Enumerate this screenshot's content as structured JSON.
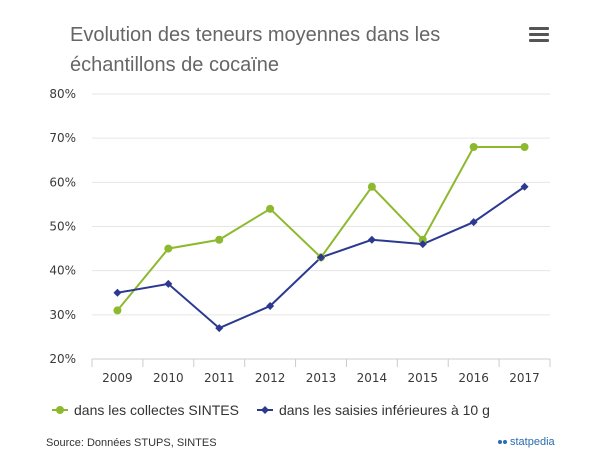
{
  "title": "Evolution des teneurs moyennes dans les échantillons de cocaïne",
  "menu_icon": "hamburger-menu-icon",
  "source": "Source: Données STUPS, SINTES",
  "brand": "statpedia",
  "colors": {
    "series1": "#8db92e",
    "series2": "#2b3990",
    "grid": "#e6e6e6",
    "axis": "#cccccc"
  },
  "chart_data": {
    "type": "line",
    "categories": [
      "2009",
      "2010",
      "2011",
      "2012",
      "2013",
      "2014",
      "2015",
      "2016",
      "2017"
    ],
    "ylim": [
      20,
      80
    ],
    "yticks": [
      "20%",
      "30%",
      "40%",
      "50%",
      "60%",
      "70%",
      "80%"
    ],
    "grid": true,
    "legend_position": "bottom-left",
    "series": [
      {
        "name": "dans les collectes SINTES",
        "values": [
          31,
          45,
          47,
          54,
          43,
          59,
          47,
          68,
          68
        ]
      },
      {
        "name": "dans les saisies inférieures à 10 g",
        "values": [
          35,
          37,
          27,
          32,
          43,
          47,
          46,
          51,
          59
        ]
      }
    ]
  }
}
